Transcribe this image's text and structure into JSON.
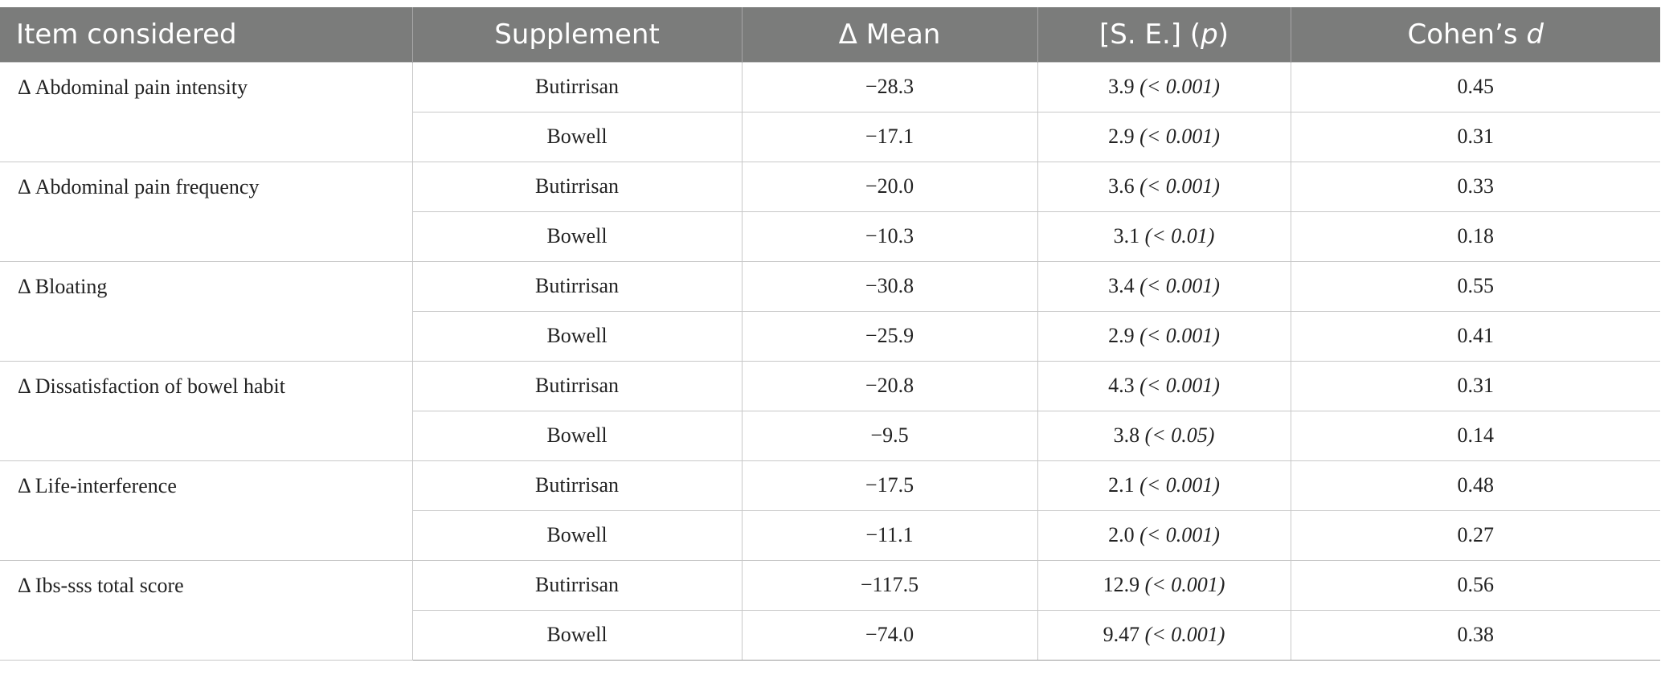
{
  "table": {
    "headers": {
      "item": "Item considered",
      "supplement": "Supplement",
      "mean": "Δ Mean",
      "se_prefix": "[S. E.] (",
      "se_p": "p",
      "se_suffix": ")",
      "cohen_prefix": "Cohen’s ",
      "cohen_d": "d"
    },
    "groups": [
      {
        "item": "Δ Abdominal pain intensity",
        "rows": [
          {
            "supplement": "Butirrisan",
            "mean": "−28.3",
            "se": "3.9",
            "p": "(< 0.001)",
            "d": "0.45"
          },
          {
            "supplement": "Bowell",
            "mean": "−17.1",
            "se": "2.9",
            "p": "(< 0.001)",
            "d": "0.31"
          }
        ]
      },
      {
        "item": "Δ Abdominal pain frequency",
        "rows": [
          {
            "supplement": "Butirrisan",
            "mean": "−20.0",
            "se": "3.6",
            "p": "(< 0.001)",
            "d": "0.33"
          },
          {
            "supplement": "Bowell",
            "mean": "−10.3",
            "se": "3.1",
            "p": "(< 0.01)",
            "d": "0.18"
          }
        ]
      },
      {
        "item": "Δ Bloating",
        "rows": [
          {
            "supplement": "Butirrisan",
            "mean": "−30.8",
            "se": "3.4",
            "p": "(< 0.001)",
            "d": "0.55"
          },
          {
            "supplement": "Bowell",
            "mean": "−25.9",
            "se": "2.9",
            "p": "(< 0.001)",
            "d": "0.41"
          }
        ]
      },
      {
        "item": "Δ Dissatisfaction of bowel habit",
        "rows": [
          {
            "supplement": "Butirrisan",
            "mean": "−20.8",
            "se": "4.3",
            "p": "(< 0.001)",
            "d": "0.31"
          },
          {
            "supplement": "Bowell",
            "mean": "−9.5",
            "se": "3.8",
            "p": "(< 0.05)",
            "d": "0.14"
          }
        ]
      },
      {
        "item": "Δ Life-interference",
        "rows": [
          {
            "supplement": "Butirrisan",
            "mean": "−17.5",
            "se": "2.1",
            "p": "(< 0.001)",
            "d": "0.48"
          },
          {
            "supplement": "Bowell",
            "mean": "−11.1",
            "se": "2.0",
            "p": "(< 0.001)",
            "d": "0.27"
          }
        ]
      },
      {
        "item": "Δ Ibs-sss total score",
        "rows": [
          {
            "supplement": "Butirrisan",
            "mean": "−117.5",
            "se": "12.9",
            "p": "(< 0.001)",
            "d": "0.56"
          },
          {
            "supplement": "Bowell",
            "mean": "−74.0",
            "se": "9.47",
            "p": "(< 0.001)",
            "d": "0.38"
          }
        ]
      }
    ]
  }
}
